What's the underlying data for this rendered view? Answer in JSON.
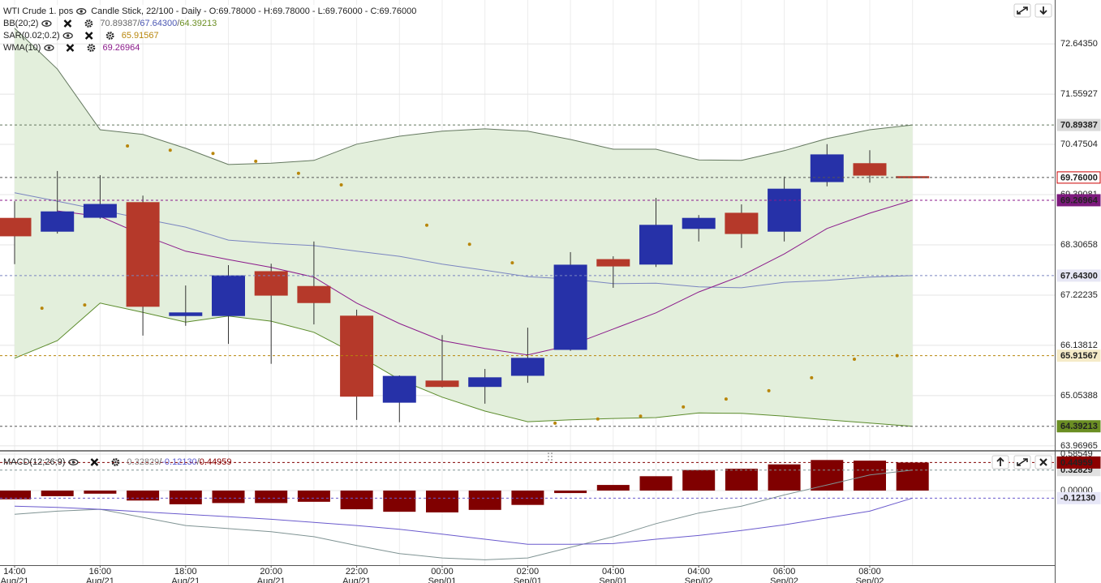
{
  "chart_data": [
    {
      "type": "candlestick",
      "title": "WTI Crude 1. pos",
      "subtitle": "Candle Stick, 22/100 - Daily - O:69.78000 - H:69.78000 - L:69.76000 - C:69.76000",
      "categories": [
        "14:00",
        null,
        "16:00",
        null,
        "18:00",
        null,
        "20:00",
        null,
        "22:00",
        null,
        "00:00",
        null,
        "02:00",
        null,
        "04:00",
        null,
        "04:00",
        null,
        "06:00",
        null,
        "08:00",
        null
      ],
      "category_dates": [
        "Aug/21",
        null,
        "Aug/21",
        null,
        "Aug/21",
        null,
        "Aug/21",
        null,
        "Aug/21",
        null,
        "Sep/01",
        null,
        "Sep/01",
        null,
        "Sep/01",
        null,
        "Sep/02",
        null,
        "Sep/02",
        null,
        "Sep/02",
        null
      ],
      "open": [
        68.88,
        68.6,
        68.9,
        69.22,
        66.78,
        66.78,
        67.73,
        67.41,
        66.77,
        64.91,
        65.37,
        65.25,
        65.49,
        66.05,
        67.99,
        67.89,
        68.66,
        68.99,
        68.6,
        69.67,
        70.06,
        69.78
      ],
      "high": [
        69.25,
        69.9,
        69.81,
        69.37,
        67.43,
        67.87,
        67.9,
        68.38,
        66.91,
        65.49,
        66.36,
        65.63,
        66.52,
        68.15,
        68.06,
        69.32,
        68.95,
        69.18,
        69.78,
        70.48,
        70.35,
        69.78
      ],
      "low": [
        67.89,
        68.55,
        68.87,
        66.35,
        66.56,
        66.17,
        65.74,
        66.59,
        64.53,
        64.48,
        65.23,
        64.88,
        65.33,
        66.02,
        67.38,
        67.83,
        68.38,
        68.24,
        68.38,
        69.57,
        69.65,
        69.76
      ],
      "close": [
        68.5,
        69.02,
        69.18,
        66.98,
        66.84,
        67.64,
        67.22,
        67.06,
        65.04,
        65.47,
        65.25,
        65.44,
        65.86,
        67.87,
        67.85,
        68.73,
        68.88,
        68.55,
        69.51,
        70.25,
        69.81,
        69.76
      ],
      "close_label": "69.76000",
      "up_color": "#2631a8",
      "down_color": "#b5392a",
      "close_badge": "#ffffff",
      "close_badge_text": "#cc0000",
      "close_guide": "#555555",
      "ylim": [
        63.88,
        73.59
      ],
      "yticks": [
        {
          "value": 72.6435,
          "label": "72.64350"
        },
        71.55927,
        70.47504,
        69.39081,
        68.30658,
        67.22235,
        66.13812,
        65.05388,
        63.96965
      ],
      "grid": true,
      "separator": "/",
      "indicators": [
        {
          "name": "BB(20;2)",
          "style": "band",
          "fill": "#e3efdc",
          "lines": [
            {
              "color": "#64785f",
              "label_color": "#666666",
              "badge": "#d9d9d9",
              "badge_text": "#333333",
              "value_label": "70.89387",
              "values": [
                72.98,
                72.1,
                70.79,
                70.69,
                70.39,
                70.04,
                70.07,
                70.13,
                70.48,
                70.65,
                70.76,
                70.81,
                70.76,
                70.58,
                70.37,
                70.37,
                70.14,
                70.13,
                70.34,
                70.6,
                70.79,
                70.89387
              ]
            },
            {
              "color": "#7a85c0",
              "label_color": "#4b57b3",
              "badge": "#e7e7f5",
              "badge_text": "#3f4fb0",
              "value_label": "67.64300",
              "values": [
                69.43,
                69.25,
                69.06,
                68.87,
                68.69,
                68.41,
                68.34,
                68.29,
                68.17,
                68.06,
                67.89,
                67.76,
                67.62,
                67.57,
                67.47,
                67.48,
                67.4,
                67.38,
                67.5,
                67.54,
                67.61,
                67.643
              ]
            },
            {
              "color": "#5b8b2b",
              "label_color": "#6b8e23",
              "badge": "#6b8e23",
              "badge_text": "#ffffff",
              "value_label": "64.39213",
              "values": [
                65.86,
                66.24,
                67.05,
                66.85,
                66.64,
                66.77,
                66.66,
                66.42,
                65.94,
                65.4,
                65.02,
                64.72,
                64.49,
                64.53,
                64.56,
                64.58,
                64.68,
                64.67,
                64.61,
                64.53,
                64.46,
                64.39213
              ]
            }
          ]
        },
        {
          "name": "SAR(0.02;0.2)",
          "style": "dots",
          "lines": [
            {
              "color": "#b8860b",
              "label_color": "#b8860b",
              "badge": "#f5ebc8",
              "badge_text": "#a07000",
              "value_label": "65.91567",
              "values": [
                null,
                66.94,
                67.01,
                70.44,
                70.35,
                70.28,
                70.11,
                69.85,
                69.6,
                null,
                68.73,
                68.32,
                67.92,
                64.46,
                64.55,
                64.61,
                64.81,
                64.98,
                65.16,
                65.44,
                65.84,
                65.91567
              ]
            }
          ]
        },
        {
          "name": "WMA(10)",
          "style": "line",
          "lines": [
            {
              "color": "#8b1a8b",
              "label_color": "#8b1a8b",
              "badge": "#7d1a7d",
              "badge_text": "#ffffff",
              "value_label": "69.26964",
              "values": [
                null,
                69.04,
                68.92,
                68.52,
                68.17,
                67.99,
                67.82,
                67.61,
                67.05,
                66.61,
                66.24,
                66.07,
                65.93,
                66.14,
                66.49,
                66.84,
                67.29,
                67.64,
                68.11,
                68.66,
                68.99,
                69.26964
              ]
            }
          ]
        }
      ]
    },
    {
      "type": "macd",
      "name": "MACD(12;26;9)",
      "ylim": [
        -1.196,
        0.624
      ],
      "yticks": [
        0.58549,
        {
          "value": 0,
          "label": "0.00000"
        }
      ],
      "lines": [
        {
          "color": "#7f9393",
          "label_color": "#888888",
          "badge": "#e0e0e0",
          "badge_text": "#777777",
          "value_label": "0.32829",
          "values": [
            -0.38,
            -0.33,
            -0.3,
            -0.43,
            -0.56,
            -0.61,
            -0.66,
            -0.74,
            -0.88,
            -1.01,
            -1.08,
            -1.11,
            -1.08,
            -0.91,
            -0.74,
            -0.53,
            -0.36,
            -0.25,
            -0.07,
            0.09,
            0.25,
            0.32829
          ]
        },
        {
          "color": "#6a5acd",
          "label_color": "#5a5ad0",
          "badge": "#e6e6f7",
          "badge_text": "#4a50c0",
          "value_label": "-0.12130",
          "values": [
            -0.25,
            -0.27,
            -0.3,
            -0.34,
            -0.38,
            -0.42,
            -0.46,
            -0.51,
            -0.56,
            -0.62,
            -0.7,
            -0.78,
            -0.86,
            -0.86,
            -0.85,
            -0.78,
            -0.72,
            -0.64,
            -0.55,
            -0.44,
            -0.33,
            -0.1213
          ]
        }
      ],
      "histogram": {
        "color": "#800000",
        "label_color": "#8b0000",
        "badge": "#8b0000",
        "badge_text": "#ffffff",
        "value_label": "0.44959",
        "values": [
          -0.14,
          -0.09,
          -0.05,
          -0.16,
          -0.22,
          -0.2,
          -0.2,
          -0.18,
          -0.3,
          -0.34,
          -0.35,
          -0.31,
          -0.23,
          -0.04,
          0.09,
          0.23,
          0.33,
          0.35,
          0.42,
          0.49,
          0.48,
          0.44959
        ]
      }
    }
  ]
}
